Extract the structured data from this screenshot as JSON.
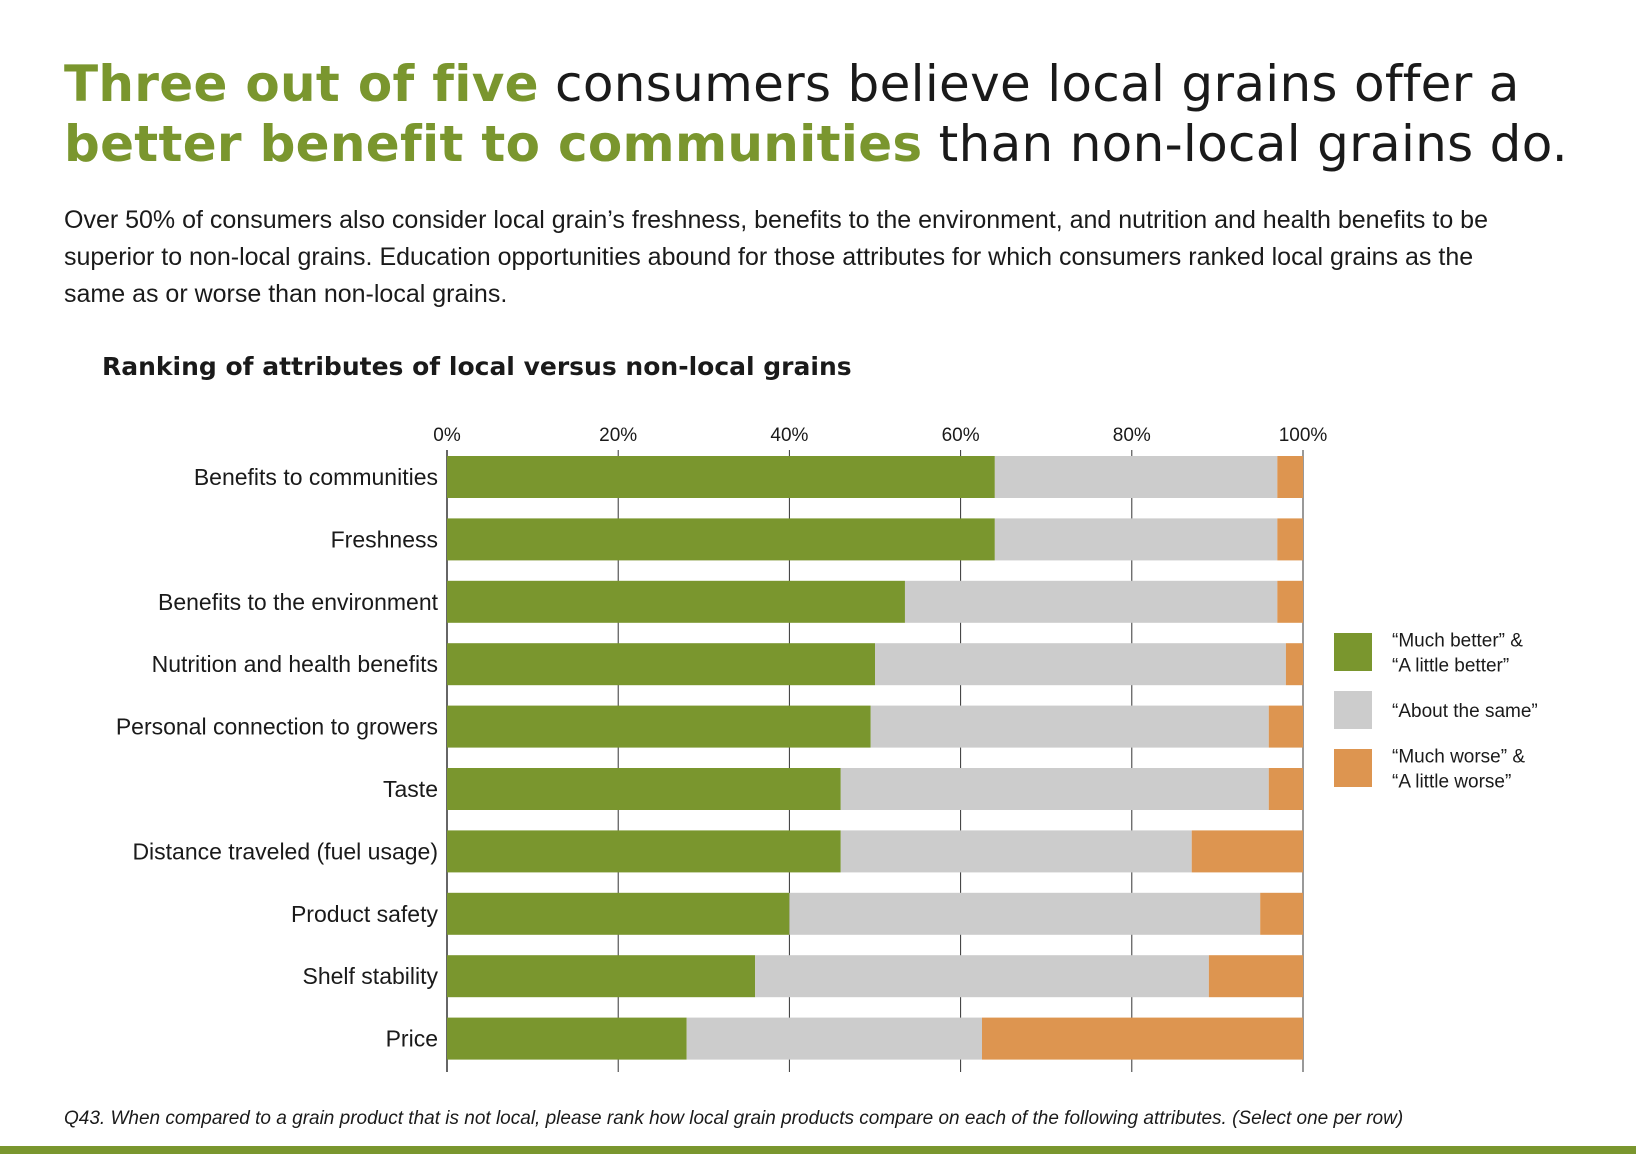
{
  "headline": {
    "part1": "Three out of five",
    "part2": " consumers believe local grains offer a ",
    "part3": "better benefit to communities",
    "part4": " than non-local grains do."
  },
  "intro": "Over 50% of consumers also consider local grain’s freshness, benefits to the environment, and nutrition and health benefits to be superior to non-local grains. Education opportunities abound for those attributes for which consum­ers ranked local grains as the same as or worse than non-local grains.",
  "note": "Q43. When compared to a grain product that is not local, please rank how local grain products compare on each of the following attributes. (Select one per row)",
  "colors": {
    "accent": "#7a962e",
    "better": "#7a962e",
    "same": "#cccccc",
    "worse": "#dd9550",
    "bottom_bar": "#7a962e"
  },
  "chart_data": {
    "type": "bar",
    "orientation": "horizontal",
    "stacked": true,
    "title": "Ranking of attributes of local versus non-local grains",
    "xlim": [
      0,
      100
    ],
    "x_ticks": [
      "0%",
      "20%",
      "40%",
      "60%",
      "80%",
      "100%"
    ],
    "categories": [
      "Benefits to communities",
      "Freshness",
      "Benefits to the environment",
      "Nutrition and health benefits",
      "Personal connection to growers",
      "Taste",
      "Distance traveled (fuel usage)",
      "Product safety",
      "Shelf stability",
      "Price"
    ],
    "series": [
      {
        "name": "“Much better” & “A little better”",
        "legend_lines": [
          "“Much better” &",
          "“A little better”"
        ],
        "color": "#7a962e",
        "values": [
          64,
          64,
          53.5,
          50,
          49.5,
          46,
          46,
          40,
          36,
          28
        ]
      },
      {
        "name": "“About the same”",
        "legend_lines": [
          "“About the same”"
        ],
        "color": "#cccccc",
        "values": [
          33,
          33,
          43.5,
          48,
          46.5,
          50,
          41,
          55,
          53,
          34.5
        ]
      },
      {
        "name": "“Much worse” & “A little worse”",
        "legend_lines": [
          "“Much worse” &",
          "“A little worse”"
        ],
        "color": "#dd9550",
        "values": [
          3,
          3,
          3,
          2,
          4,
          4,
          13,
          5,
          11,
          37.5
        ]
      }
    ],
    "legend_position": "right",
    "grid": true
  }
}
